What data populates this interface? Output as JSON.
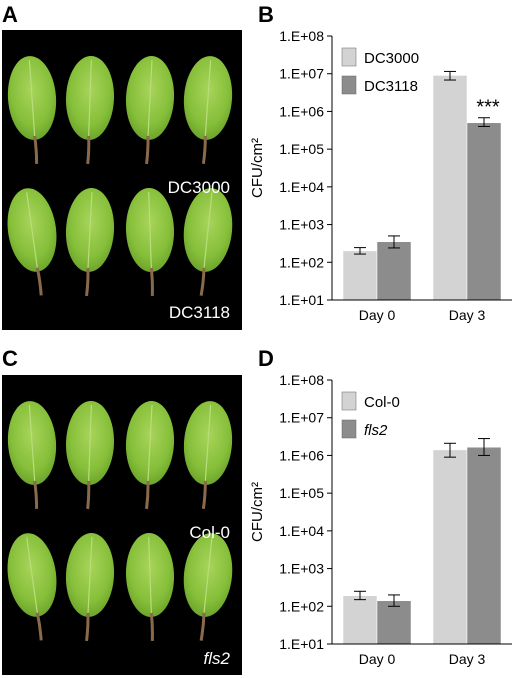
{
  "panels": {
    "A": {
      "letter": "A",
      "top_label": "DC3000",
      "bottom_label": "DC3118"
    },
    "B": {
      "letter": "B"
    },
    "C": {
      "letter": "C",
      "top_label": "Col-0",
      "bottom_label": "fls2"
    },
    "D": {
      "letter": "D"
    }
  },
  "colors": {
    "series_light": "#d3d3d3",
    "series_dark": "#8c8c8c",
    "photo_background": "#000000",
    "leaf": "#8fc640"
  },
  "chart_data": [
    {
      "type": "bar",
      "panel": "B",
      "categories": [
        "Day 0",
        "Day 3"
      ],
      "ylabel": "CFU/cm²",
      "yscale": "log",
      "ylim": [
        10,
        100000000
      ],
      "yticks": [
        "1.E+01",
        "1.E+02",
        "1.E+03",
        "1.E+04",
        "1.E+05",
        "1.E+06",
        "1.E+07",
        "1.E+08"
      ],
      "legend_position": "top-left",
      "series": [
        {
          "name": "DC3000",
          "color": "#d3d3d3",
          "values": [
            200,
            9000000
          ],
          "err_low": [
            165,
            6800000
          ],
          "err_high": [
            245,
            11500000
          ]
        },
        {
          "name": "DC3118",
          "color": "#8c8c8c",
          "values": [
            350,
            500000
          ],
          "err_low": [
            240,
            400000
          ],
          "err_high": [
            500,
            680000
          ]
        }
      ],
      "annotations": [
        {
          "text": "***",
          "category": "Day 3",
          "series": "DC3118"
        }
      ]
    },
    {
      "type": "bar",
      "panel": "D",
      "categories": [
        "Day 0",
        "Day 3"
      ],
      "ylabel": "CFU/cm²",
      "yscale": "log",
      "ylim": [
        10,
        100000000
      ],
      "yticks": [
        "1.E+01",
        "1.E+02",
        "1.E+03",
        "1.E+04",
        "1.E+05",
        "1.E+06",
        "1.E+07",
        "1.E+08"
      ],
      "legend_position": "top-left",
      "series": [
        {
          "name": "Col-0",
          "color": "#d3d3d3",
          "values": [
            190,
            1400000
          ],
          "err_low": [
            150,
            900000
          ],
          "err_high": [
            250,
            2100000
          ]
        },
        {
          "name": "fls2",
          "color": "#8c8c8c",
          "values": [
            140,
            1650000
          ],
          "err_low": [
            100,
            1000000
          ],
          "err_high": [
            200,
            2800000
          ]
        }
      ],
      "annotations": []
    }
  ]
}
